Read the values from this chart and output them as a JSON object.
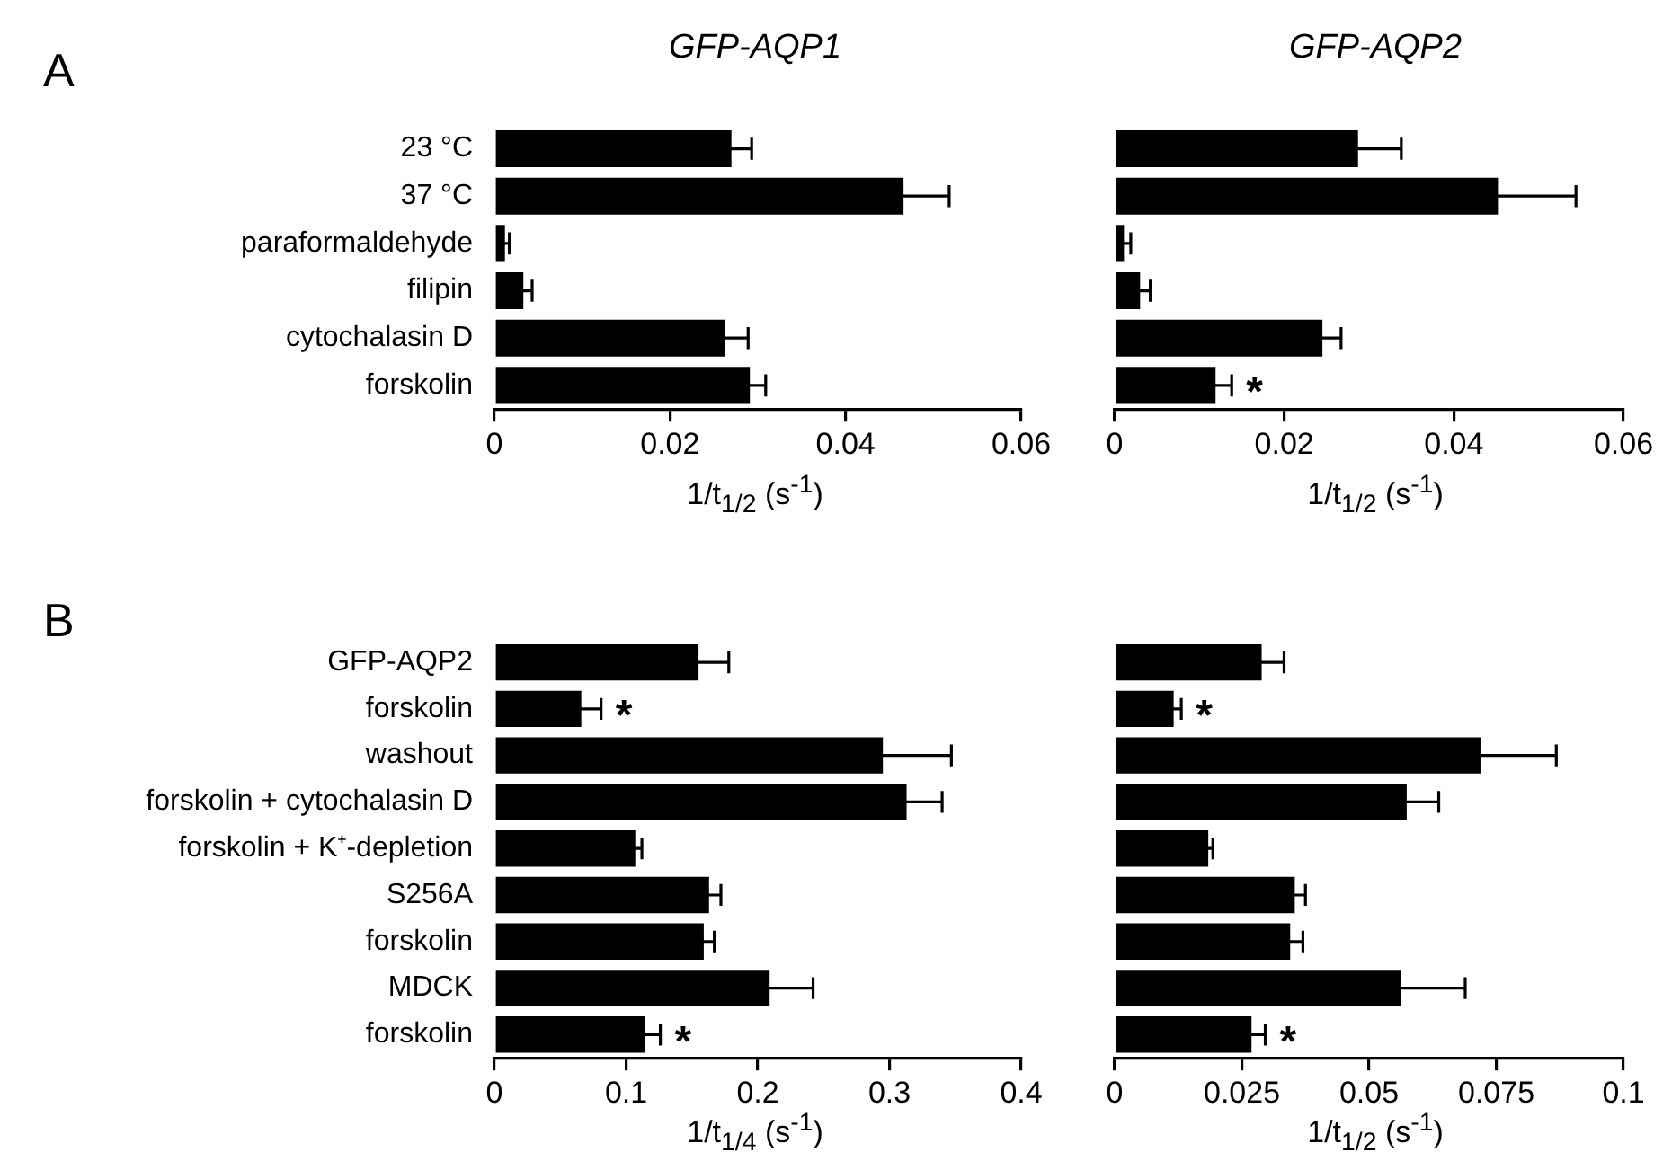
{
  "chart_data": [
    {
      "type": "bar",
      "orientation": "horizontal",
      "title": "GFP-AQP1",
      "xlabel": "1/t$_{1/2}$  (s$^{-1}$)",
      "annotations": [
        "A"
      ],
      "categories": [
        "23 °C",
        "37 °C",
        "paraformaldehyde",
        "filipin",
        "cytochalasin D",
        "forskolin"
      ],
      "values": [
        0.027,
        0.0466,
        0.0012,
        0.0033,
        0.0263,
        0.0291
      ],
      "errors": [
        0.0023,
        0.0052,
        0.0005,
        0.001,
        0.0026,
        0.0018
      ],
      "color": "#000000",
      "xlim": [
        0,
        0.06
      ],
      "xticks": [
        0,
        0.02,
        0.04,
        0.06
      ]
    },
    {
      "type": "bar",
      "orientation": "horizontal",
      "title": "GFP-AQP2",
      "xlabel": "1/t$_{1/2}$  (s$^{-1}$)",
      "categories": [
        null,
        null,
        null,
        null,
        null,
        null
      ],
      "values": [
        0.0287,
        0.0452,
        0.0011,
        0.003,
        0.0245,
        0.0119
      ],
      "errors": [
        0.0051,
        0.0092,
        0.0008,
        0.0012,
        0.0022,
        0.0019
      ],
      "color": "#000000",
      "value_labels": [
        null,
        null,
        null,
        null,
        null,
        "*"
      ],
      "xlim": [
        0,
        0.06
      ],
      "xticks": [
        0,
        0.02,
        0.04,
        0.06
      ]
    },
    {
      "type": "bar",
      "orientation": "horizontal",
      "xlabel": "1/t$_{1/4}$  (s$^{-1}$)",
      "annotations": [
        "B"
      ],
      "categories": [
        "GFP-AQP2",
        "forskolin",
        "washout",
        "forskolin + cytochalasin D",
        "forskolin + K⁺-depletion",
        "S256A",
        "forskolin",
        "MDCK",
        "forskolin"
      ],
      "values": [
        0.155,
        0.066,
        0.295,
        0.313,
        0.107,
        0.163,
        0.159,
        0.209,
        0.114
      ],
      "errors": [
        0.023,
        0.015,
        0.052,
        0.027,
        0.005,
        0.009,
        0.008,
        0.033,
        0.012
      ],
      "color": "#000000",
      "value_labels": [
        null,
        "*",
        null,
        null,
        null,
        null,
        null,
        null,
        "*"
      ],
      "xlim": [
        0,
        0.4
      ],
      "xticks": [
        0,
        0.1,
        0.2,
        0.3,
        0.4
      ]
    },
    {
      "type": "bar",
      "orientation": "horizontal",
      "xlabel": "1/t$_{1/2}$  (s$^{-1}$)",
      "categories": [
        null,
        null,
        null,
        null,
        null,
        null,
        null,
        null,
        null
      ],
      "values": [
        0.0289,
        0.0116,
        0.0719,
        0.0574,
        0.0184,
        0.0354,
        0.0345,
        0.0563,
        0.0269
      ],
      "errors": [
        0.0044,
        0.0015,
        0.0149,
        0.0063,
        0.0009,
        0.0021,
        0.0025,
        0.0126,
        0.0027
      ],
      "color": "#000000",
      "value_labels": [
        null,
        "*",
        null,
        null,
        null,
        null,
        null,
        null,
        "*"
      ],
      "xlim": [
        0,
        0.1
      ],
      "xticks": [
        0,
        0.025,
        0.05,
        0.075,
        0.1
      ]
    }
  ]
}
